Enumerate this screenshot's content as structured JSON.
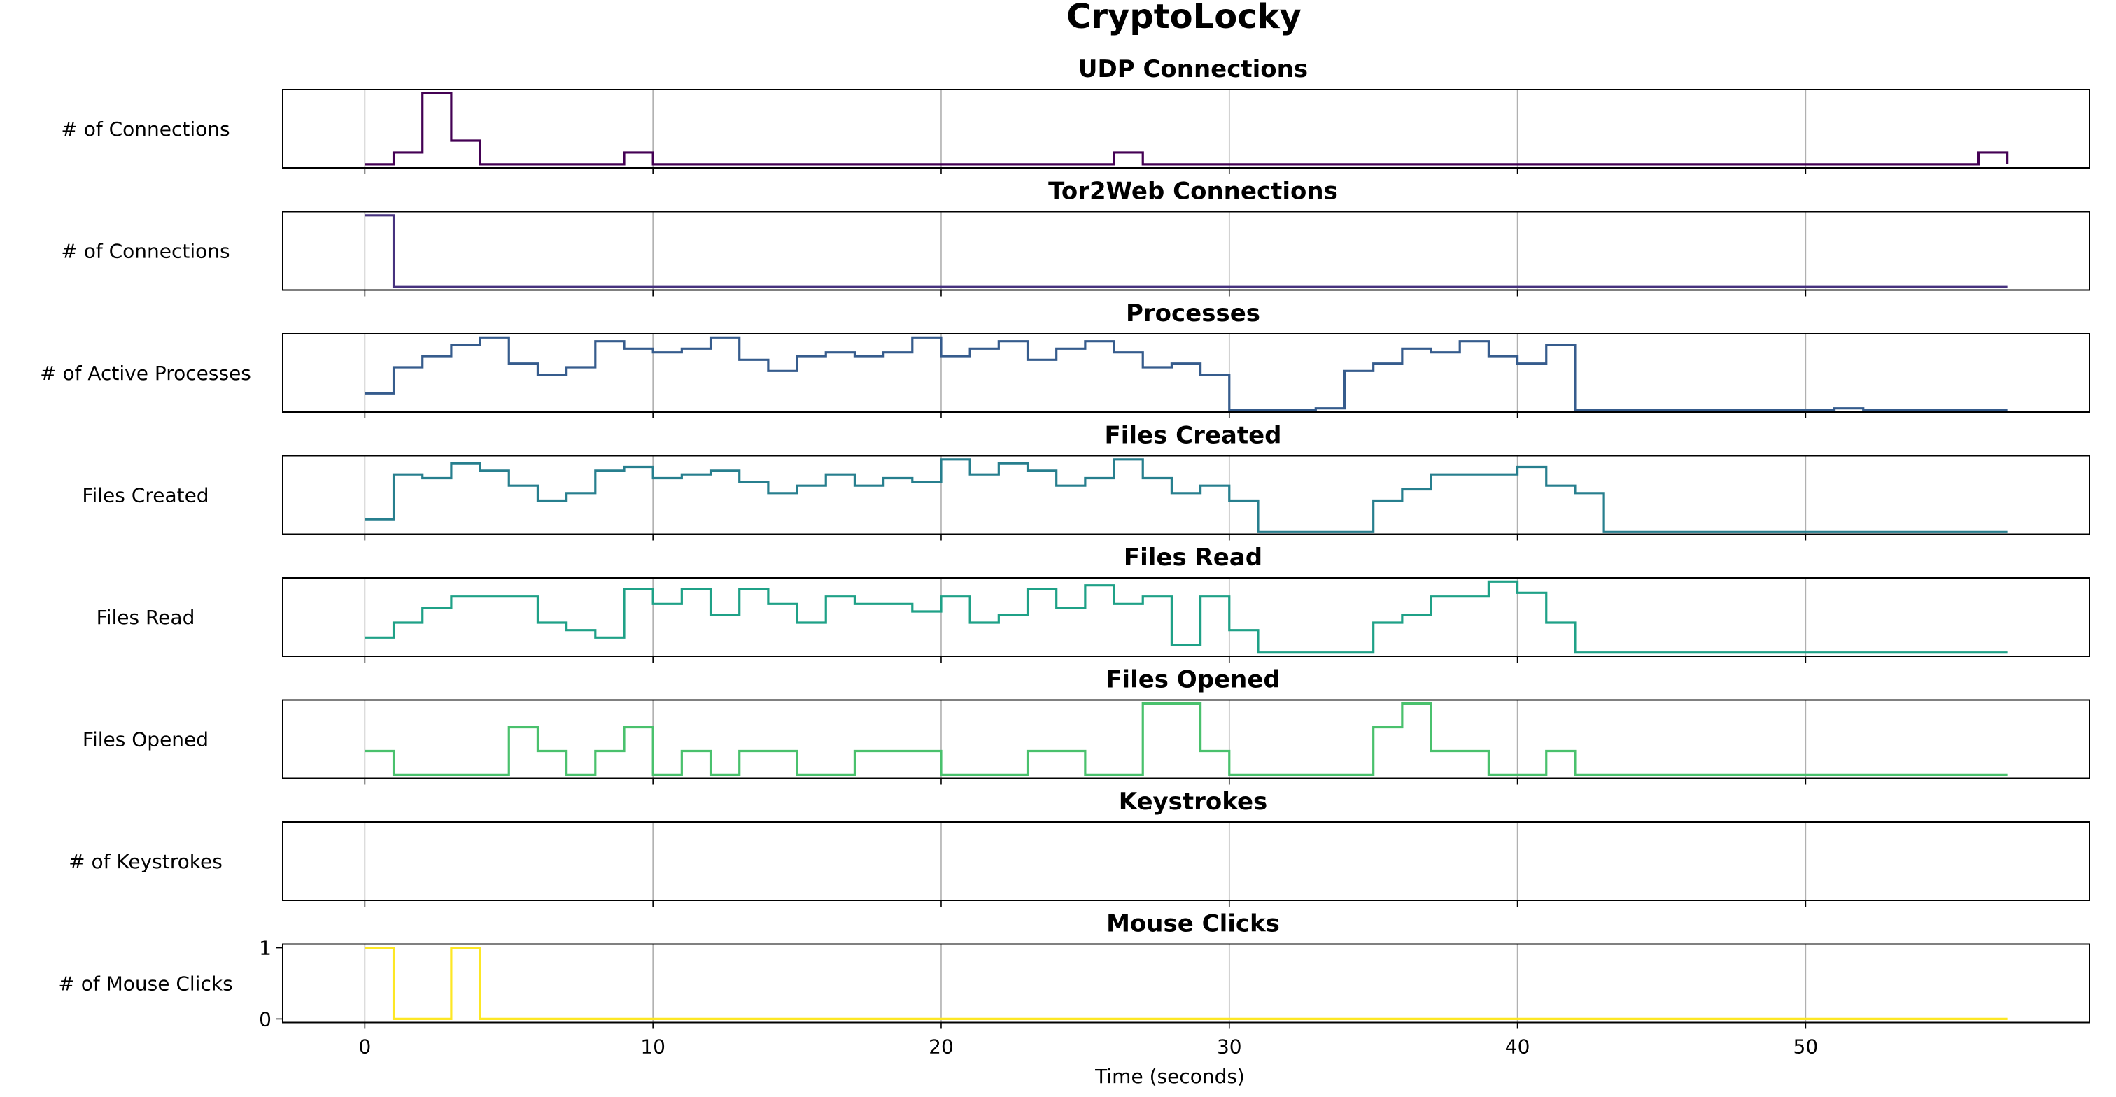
{
  "figure": {
    "title": "CryptoLocky",
    "xlabel": "Time (seconds)"
  },
  "chart_data": {
    "type": "line",
    "drawstyle": "steps-post",
    "x": [
      0,
      1,
      2,
      3,
      4,
      5,
      6,
      7,
      8,
      9,
      10,
      11,
      12,
      13,
      14,
      15,
      16,
      17,
      18,
      19,
      20,
      21,
      22,
      23,
      24,
      25,
      26,
      27,
      28,
      29,
      30,
      31,
      32,
      33,
      34,
      35,
      36,
      37,
      38,
      39,
      40,
      41,
      42,
      43,
      44,
      45,
      46,
      47,
      48,
      49,
      50,
      51,
      52,
      53,
      54,
      55,
      56,
      57
    ],
    "xlim": [
      -2.85,
      59.85
    ],
    "xticks": [
      0,
      10,
      20,
      30,
      40,
      50
    ],
    "grid": "x",
    "panels": [
      {
        "title": "UDP Connections",
        "ylabel": "# of Connections",
        "color": "#440154",
        "ylim": [
          -0.15,
          3.15
        ],
        "yticks": [],
        "values": [
          0,
          0.5,
          3,
          1,
          0,
          0,
          0,
          0,
          0,
          0.5,
          0,
          0,
          0,
          0,
          0,
          0,
          0,
          0,
          0,
          0,
          0,
          0,
          0,
          0,
          0,
          0,
          0.5,
          0,
          0,
          0,
          0,
          0,
          0,
          0,
          0,
          0,
          0,
          0,
          0,
          0,
          0,
          0,
          0,
          0,
          0,
          0,
          0,
          0,
          0,
          0,
          0,
          0,
          0,
          0,
          0,
          0,
          0.5,
          0
        ]
      },
      {
        "title": "Tor2Web Connections",
        "ylabel": "# of Connections",
        "color": "#46327e",
        "ylim": [
          0,
          1.05
        ],
        "yticks": [],
        "values": [
          1,
          0.04,
          0.04,
          0.04,
          0.04,
          0.04,
          0.04,
          0.04,
          0.04,
          0.04,
          0.04,
          0.04,
          0.04,
          0.04,
          0.04,
          0.04,
          0.04,
          0.04,
          0.04,
          0.04,
          0.04,
          0.04,
          0.04,
          0.04,
          0.04,
          0.04,
          0.04,
          0.04,
          0.04,
          0.04,
          0.04,
          0.04,
          0.04,
          0.04,
          0.04,
          0.04,
          0.04,
          0.04,
          0.04,
          0.04,
          0.04,
          0.04,
          0.04,
          0.04,
          0.04,
          0.04,
          0.04,
          0.04,
          0.04,
          0.04,
          0.04,
          0.04,
          0.04,
          0.04,
          0.04,
          0.04,
          0.04,
          0.04
        ]
      },
      {
        "title": "Processes",
        "ylabel": "# of Active Processes",
        "color": "#365c8d",
        "ylim": [
          0,
          10.5
        ],
        "yticks": [],
        "values": [
          2.5,
          6,
          7.5,
          9,
          10,
          6.5,
          5,
          6,
          9.5,
          8.5,
          8,
          8.5,
          10,
          7,
          5.5,
          7.5,
          8,
          7.5,
          8,
          10,
          7.5,
          8.5,
          9.5,
          7,
          8.5,
          9.5,
          8,
          6,
          6.5,
          5,
          0.3,
          0.3,
          0.3,
          0.5,
          5.5,
          6.5,
          8.5,
          8,
          9.5,
          7.5,
          6.5,
          9,
          0.3,
          0.3,
          0.3,
          0.3,
          0.3,
          0.3,
          0.3,
          0.3,
          0.3,
          0.5,
          0.3,
          0.3,
          0.3,
          0.3,
          0.3,
          0.3
        ]
      },
      {
        "title": "Files Created",
        "ylabel": "Files Created",
        "color": "#277f8e",
        "ylim": [
          0,
          10.5
        ],
        "yticks": [],
        "values": [
          2,
          8,
          7.5,
          9.5,
          8.5,
          6.5,
          4.5,
          5.5,
          8.5,
          9,
          7.5,
          8,
          8.5,
          7,
          5.5,
          6.5,
          8,
          6.5,
          7.5,
          7,
          10,
          8,
          9.5,
          8.5,
          6.5,
          7.5,
          10,
          7.5,
          5.5,
          6.5,
          4.5,
          0.3,
          0.3,
          0.3,
          0.3,
          4.5,
          6,
          8,
          8,
          8,
          9,
          6.5,
          5.5,
          0.3,
          0.3,
          0.3,
          0.3,
          0.3,
          0.3,
          0.3,
          0.3,
          0.3,
          0.3,
          0.3,
          0.3,
          0.3,
          0.3,
          0.3
        ]
      },
      {
        "title": "Files Read",
        "ylabel": "Files Read",
        "color": "#1fa187",
        "ylim": [
          0,
          10.5
        ],
        "yticks": [],
        "values": [
          2.5,
          4.5,
          6.5,
          8,
          8,
          8,
          4.5,
          3.5,
          2.5,
          9,
          7,
          9,
          5.5,
          9,
          7,
          4.5,
          8,
          7,
          7,
          6,
          8,
          4.5,
          5.5,
          9,
          6.5,
          9.5,
          7,
          8,
          1.5,
          8,
          3.5,
          0.5,
          0.5,
          0.5,
          0.5,
          4.5,
          5.5,
          8,
          8,
          10,
          8.5,
          4.5,
          0.5,
          0.5,
          0.5,
          0.5,
          0.5,
          0.5,
          0.5,
          0.5,
          0.5,
          0.5,
          0.5,
          0.5,
          0.5,
          0.5,
          0.5,
          0.5
        ]
      },
      {
        "title": "Files Opened",
        "ylabel": "Files Opened",
        "color": "#4ac16d",
        "ylim": [
          -0.15,
          3.15
        ],
        "yticks": [],
        "values": [
          1,
          0,
          0,
          0,
          0,
          2,
          1,
          0,
          1,
          2,
          0,
          1,
          0,
          1,
          1,
          0,
          0,
          1,
          1,
          1,
          0,
          0,
          0,
          1,
          1,
          0,
          0,
          3,
          3,
          1,
          0,
          0,
          0,
          0,
          0,
          2,
          3,
          1,
          1,
          0,
          0,
          1,
          0,
          0,
          0,
          0,
          0,
          0,
          0,
          0,
          0,
          0,
          0,
          0,
          0,
          0,
          0,
          0
        ]
      },
      {
        "title": "Keystrokes",
        "ylabel": "# of Keystrokes",
        "color": "#a0da39",
        "ylim": [
          -0.055,
          0.055
        ],
        "yticks": [],
        "values": []
      },
      {
        "title": "Mouse Clicks",
        "ylabel": "# of Mouse Clicks",
        "color": "#fde725",
        "ylim": [
          -0.05,
          1.05
        ],
        "yticks": [
          0,
          1
        ],
        "values": [
          1,
          0,
          0,
          1,
          0,
          0,
          0,
          0,
          0,
          0,
          0,
          0,
          0,
          0,
          0,
          0,
          0,
          0,
          0,
          0,
          0,
          0,
          0,
          0,
          0,
          0,
          0,
          0,
          0,
          0,
          0,
          0,
          0,
          0,
          0,
          0,
          0,
          0,
          0,
          0,
          0,
          0,
          0,
          0,
          0,
          0,
          0,
          0,
          0,
          0,
          0,
          0,
          0,
          0,
          0,
          0,
          0,
          0
        ]
      }
    ]
  }
}
